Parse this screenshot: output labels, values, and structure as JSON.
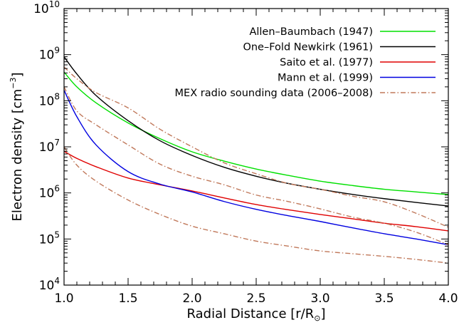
{
  "chart_data": {
    "type": "line",
    "title": "",
    "xlabel": "Radial Distance [r/R",
    "xlabel_symbol": "⊙",
    "xlabel_close": "]",
    "ylabel": "Electron density [cm",
    "ylabel_exp": "−3",
    "ylabel_close": "]",
    "xlim": [
      1.0,
      4.0
    ],
    "ylim": [
      10000,
      10000000000
    ],
    "yscale": "log",
    "x_ticks": [
      "1.0",
      "1.5",
      "2.0",
      "2.5",
      "3.0",
      "3.5",
      "4.0"
    ],
    "y_ticks": [
      {
        "base": "10",
        "exp": "4",
        "value": 10000
      },
      {
        "base": "10",
        "exp": "5",
        "value": 100000
      },
      {
        "base": "10",
        "exp": "6",
        "value": 1000000
      },
      {
        "base": "10",
        "exp": "7",
        "value": 10000000
      },
      {
        "base": "10",
        "exp": "8",
        "value": 100000000
      },
      {
        "base": "10",
        "exp": "9",
        "value": 1000000000
      },
      {
        "base": "10",
        "exp": "10",
        "value": 10000000000
      }
    ],
    "legend_position": "top-right",
    "series": [
      {
        "name": "Allen–Baumbach (1947)",
        "color": "#00e000",
        "dash": "solid",
        "x": [
          1.0,
          1.1,
          1.25,
          1.5,
          1.75,
          2.0,
          2.25,
          2.5,
          2.75,
          3.0,
          3.25,
          3.5,
          3.75,
          4.0
        ],
        "y": [
          420000000,
          200000000,
          90000000,
          33000000,
          15000000,
          7800000,
          4900000,
          3300000,
          2400000,
          1800000,
          1450000,
          1200000,
          1050000,
          920000
        ]
      },
      {
        "name": "One–Fold Newkirk (1961)",
        "color": "#000000",
        "dash": "solid",
        "x": [
          1.0,
          1.1,
          1.25,
          1.5,
          1.75,
          2.0,
          2.25,
          2.5,
          2.75,
          3.0,
          3.25,
          3.5,
          3.75,
          4.0
        ],
        "y": [
          900000000,
          380000000,
          130000000,
          37000000,
          13500000,
          6500000,
          3600000,
          2300000,
          1600000,
          1200000,
          930000,
          750000,
          620000,
          520000
        ]
      },
      {
        "name": "Saito et al. (1977)",
        "color": "#e00000",
        "dash": "solid",
        "x": [
          1.0,
          1.1,
          1.25,
          1.5,
          1.75,
          2.0,
          2.25,
          2.5,
          2.75,
          3.0,
          3.25,
          3.5,
          3.75,
          4.0
        ],
        "y": [
          8000000,
          5600000,
          3700000,
          2100000,
          1500000,
          1100000,
          780000,
          560000,
          430000,
          340000,
          275000,
          220000,
          185000,
          150000
        ]
      },
      {
        "name": "Mann et al. (1999)",
        "color": "#0000e0",
        "dash": "solid",
        "x": [
          1.0,
          1.1,
          1.25,
          1.5,
          1.75,
          2.0,
          2.25,
          2.5,
          2.75,
          3.0,
          3.25,
          3.5,
          3.75,
          4.0
        ],
        "y": [
          170000000,
          45000000,
          11000000,
          2900000,
          1550000,
          1050000,
          650000,
          440000,
          320000,
          240000,
          175000,
          130000,
          100000,
          75000
        ]
      },
      {
        "name": "MEX radio sounding data (2006–2008)",
        "color": "#c0785a",
        "dash": "dashdot",
        "x": [
          1.0,
          1.1,
          1.25,
          1.5,
          1.75,
          2.0,
          2.25,
          2.5,
          2.75,
          3.0,
          3.25,
          3.5,
          3.75,
          4.0
        ],
        "y": [
          540000000,
          300000000,
          150000000,
          70000000,
          24000000,
          10000000,
          4500000,
          2600000,
          1600000,
          1200000,
          850000,
          640000,
          360000,
          180000
        ]
      },
      {
        "name": "",
        "color": "#c0785a",
        "dash": "dashdot",
        "x": [
          1.0,
          1.1,
          1.25,
          1.5,
          1.75,
          2.0,
          2.25,
          2.5,
          2.75,
          3.0,
          3.25,
          3.5,
          3.75,
          4.0
        ],
        "y": [
          200000000,
          60000000,
          30000000,
          11000000,
          4200000,
          2300000,
          1500000,
          900000,
          650000,
          450000,
          300000,
          220000,
          140000,
          75000
        ]
      },
      {
        "name": "",
        "color": "#c0785a",
        "dash": "dashdot",
        "x": [
          1.0,
          1.1,
          1.25,
          1.5,
          1.75,
          2.0,
          2.25,
          2.5,
          2.75,
          3.0,
          3.25,
          3.5,
          3.75,
          4.0
        ],
        "y": [
          10000000,
          4000000,
          1800000,
          700000,
          340000,
          190000,
          130000,
          90000,
          70000,
          55000,
          48000,
          42000,
          36000,
          30000
        ]
      }
    ]
  }
}
